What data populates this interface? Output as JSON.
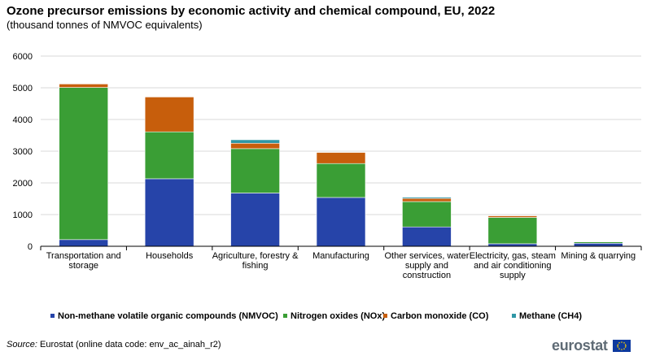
{
  "title": "Ozone precursor emissions by economic activity and chemical compound, EU, 2022",
  "subtitle": "(thousand tonnes of NMVOC  equivalents)",
  "source": {
    "label": "Source:",
    "text": "Eurostat (online data code: env_ac_ainah_r2)"
  },
  "logo": {
    "text": "eurostat"
  },
  "chart_data": {
    "type": "bar",
    "stacked": true,
    "categories": [
      [
        "Transportation and",
        "storage"
      ],
      [
        "Households"
      ],
      [
        "Agriculture, forestry &",
        "fishing"
      ],
      [
        "Manufacturing"
      ],
      [
        "Other services, water",
        "supply and",
        "construction"
      ],
      [
        "Electricity, gas, steam",
        "and air conditioning",
        "supply"
      ],
      [
        "Mining & quarrying"
      ]
    ],
    "series": [
      {
        "name": "Non-methane volatile organic compounds (NMVOC)",
        "color": "#2644a9",
        "values": [
          210,
          2130,
          1680,
          1540,
          610,
          80,
          95
        ]
      },
      {
        "name": "Nitrogen oxides (NOx)",
        "color": "#3a9e35",
        "values": [
          4800,
          1480,
          1400,
          1070,
          800,
          830,
          45
        ]
      },
      {
        "name": "Carbon monoxide (CO)",
        "color": "#c75e0c",
        "values": [
          110,
          1100,
          170,
          350,
          100,
          50,
          10
        ]
      },
      {
        "name": "Methane (CH4)",
        "color": "#2f97a6",
        "values": [
          0,
          0,
          110,
          0,
          40,
          0,
          0
        ]
      }
    ],
    "yticks": [
      0,
      1000,
      2000,
      3000,
      4000,
      5000,
      6000
    ],
    "ylim": [
      0,
      6000
    ],
    "grid": true,
    "legend": "bottom"
  }
}
